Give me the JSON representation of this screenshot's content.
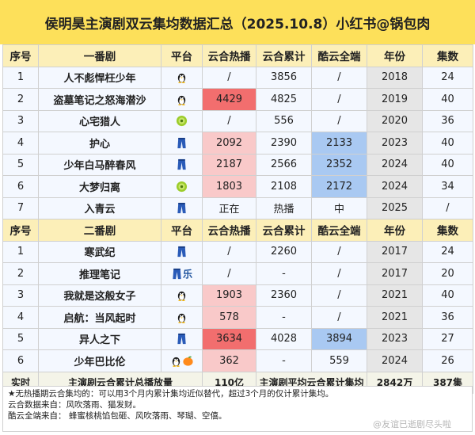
{
  "title": "侯明昊主演剧双云集均数据汇总（2025.10.8）小红书@锅包肉",
  "section1": {
    "headers": [
      "序号",
      "一番剧",
      "平台",
      "云合热播",
      "云合累计",
      "酷云全端",
      "年份",
      "集数"
    ],
    "rows": [
      {
        "no": "1",
        "name": "人不彪悍枉少年",
        "platforms": [
          "tencent"
        ],
        "hot": "/",
        "cum": "3856",
        "kuyun": "/",
        "year": "2018",
        "eps": "24"
      },
      {
        "no": "2",
        "name": "盗墓笔记之怒海潜沙",
        "platforms": [
          "tencent"
        ],
        "hot": "4429",
        "cum": "4825",
        "kuyun": "/",
        "year": "2019",
        "eps": "40"
      },
      {
        "no": "3",
        "name": "心宅猎人",
        "platforms": [
          "iqiyi"
        ],
        "hot": "/",
        "cum": "556",
        "kuyun": "/",
        "year": "2020",
        "eps": "36"
      },
      {
        "no": "4",
        "name": "护心",
        "platforms": [
          "youku"
        ],
        "hot": "2092",
        "cum": "2390",
        "kuyun": "2133",
        "year": "2023",
        "eps": "40"
      },
      {
        "no": "5",
        "name": "少年白马醉春风",
        "platforms": [
          "youku"
        ],
        "hot": "2187",
        "cum": "2566",
        "kuyun": "2352",
        "year": "2024",
        "eps": "40"
      },
      {
        "no": "6",
        "name": "大梦归离",
        "platforms": [
          "iqiyi"
        ],
        "hot": "1803",
        "cum": "2108",
        "kuyun": "2172",
        "year": "2024",
        "eps": "34"
      },
      {
        "no": "7",
        "name": "入青云",
        "platforms": [
          "youku"
        ],
        "hot": "正在",
        "cum": "热播",
        "kuyun": "中",
        "year": "2025",
        "eps": "/"
      }
    ]
  },
  "section2": {
    "headers": [
      "序号",
      "二番剧",
      "平台",
      "云合热播",
      "云合累计",
      "酷云全端",
      "年份",
      "集数"
    ],
    "rows": [
      {
        "no": "1",
        "name": "寒武纪",
        "platforms": [
          "youku"
        ],
        "hot": "/",
        "cum": "2260",
        "kuyun": "/",
        "year": "2017",
        "eps": "24"
      },
      {
        "no": "2",
        "name": "推理笔记",
        "platforms": [
          "youku",
          "le"
        ],
        "hot": "/",
        "cum": "-",
        "kuyun": "/",
        "year": "2017",
        "eps": "20"
      },
      {
        "no": "3",
        "name": "我就是这般女子",
        "platforms": [
          "tencent"
        ],
        "hot": "1903",
        "cum": "2360",
        "kuyun": "/",
        "year": "2021",
        "eps": "40"
      },
      {
        "no": "4",
        "name": "启航：当风起时",
        "platforms": [
          "tencent"
        ],
        "hot": "578",
        "cum": "-",
        "kuyun": "/",
        "year": "2021",
        "eps": "36"
      },
      {
        "no": "5",
        "name": "异人之下",
        "platforms": [
          "youku"
        ],
        "hot": "3634",
        "cum": "4028",
        "kuyun": "3894",
        "year": "2023",
        "eps": "27"
      },
      {
        "no": "6",
        "name": "少年巴比伦",
        "platforms": [
          "tencent",
          "mango"
        ],
        "hot": "362",
        "cum": "-",
        "kuyun": "559",
        "year": "2024",
        "eps": "26"
      }
    ]
  },
  "platform_labels": {
    "le": "乐"
  },
  "summary": {
    "label": "实时",
    "total_label": "主演剧云合累计总播放量",
    "total_value": "110亿",
    "avg_label": "主演剧平均云合累计集均",
    "avg_value": "2842万",
    "episodes": "387集"
  },
  "notes": [
    "★无热播期云合集均的：可以用3个月内累计集均近似替代，超过3个月的仅计累计集均。",
    "云合数据来自：风吹落雨、猫发财。",
    "酷云全端来自：    蜂蜜核桃馅包砸、风吹落雨、琴瑚、空僖。"
  ],
  "watermark": "@友谊已逝剧尽头啦",
  "colors": {
    "title_bg": "#fde05a",
    "header_bg": "#fcefb8",
    "row_bg": "#f4f8ff",
    "year_bg": "#e6e6e6",
    "hot_high": "#f26e6e",
    "hot_low": "#f9c9c9",
    "kuyun": "#a9c9f2",
    "accent_red": "#d42020"
  }
}
